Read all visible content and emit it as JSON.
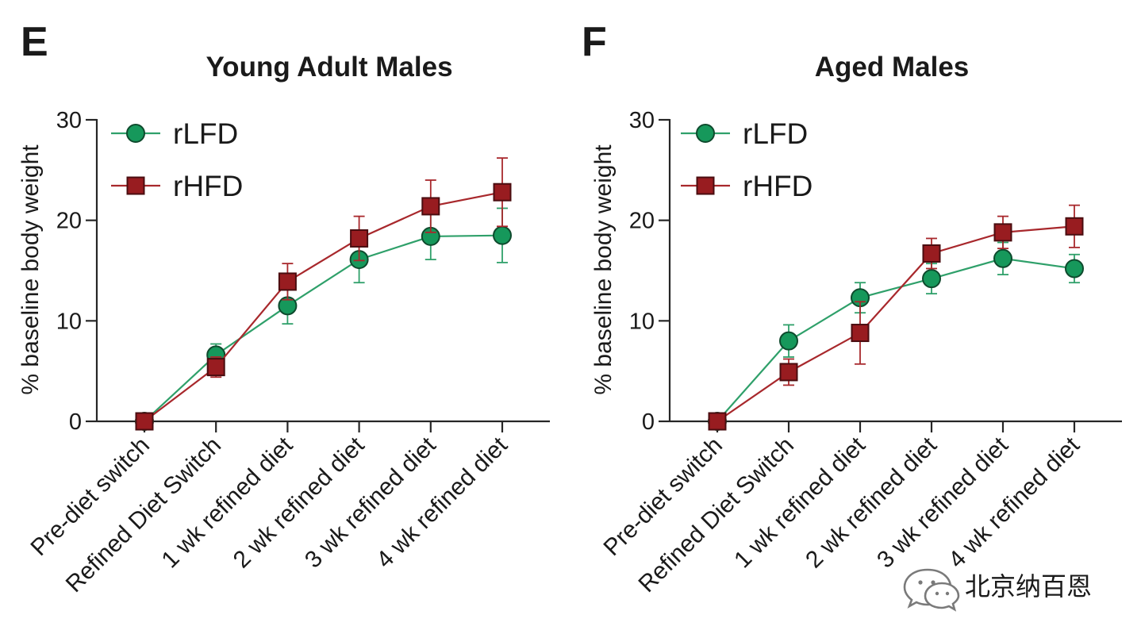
{
  "figure": {
    "background": "#ffffff",
    "axis_color": "#262626"
  },
  "chart_data": [
    {
      "panel_label": "E",
      "type": "line",
      "title": "Young Adult Males",
      "xlabel": "",
      "ylabel": "% baseline body weight",
      "ylim": [
        0,
        30
      ],
      "yticks": [
        0,
        10,
        20,
        30
      ],
      "grid": false,
      "legend": "top-left",
      "categories": [
        "Pre-diet switch",
        "Refined Diet Switch",
        "1 wk refined diet",
        "2 wk refined diet",
        "3 wk refined diet",
        "4 wk refined diet"
      ],
      "series": [
        {
          "name": "rLFD",
          "marker": "circle",
          "color": "#16985b",
          "edge_color": "#0e4a2d",
          "line_color": "#2fa06a",
          "values": [
            0,
            6.6,
            11.5,
            16.1,
            18.4,
            18.5
          ],
          "error": [
            0,
            1.1,
            1.8,
            2.3,
            2.3,
            2.7
          ]
        },
        {
          "name": "rHFD",
          "marker": "square",
          "color": "#981c20",
          "edge_color": "#4a0d10",
          "line_color": "#a8282c",
          "values": [
            0,
            5.4,
            13.9,
            18.2,
            21.4,
            22.8
          ],
          "error": [
            0,
            1.0,
            1.8,
            2.2,
            2.6,
            3.4
          ]
        }
      ]
    },
    {
      "panel_label": "F",
      "type": "line",
      "title": "Aged Males",
      "xlabel": "",
      "ylabel": "% baseline body weight",
      "ylim": [
        0,
        30
      ],
      "yticks": [
        0,
        10,
        20,
        30
      ],
      "grid": false,
      "legend": "top-left",
      "categories": [
        "Pre-diet switch",
        "Refined Diet Switch",
        "1 wk refined diet",
        "2 wk refined diet",
        "3 wk refined diet",
        "4 wk refined diet"
      ],
      "series": [
        {
          "name": "rLFD",
          "marker": "circle",
          "color": "#16985b",
          "edge_color": "#0e4a2d",
          "line_color": "#2fa06a",
          "values": [
            0,
            8.0,
            12.3,
            14.2,
            16.2,
            15.2
          ],
          "error": [
            0,
            1.6,
            1.5,
            1.5,
            1.6,
            1.4
          ]
        },
        {
          "name": "rHFD",
          "marker": "square",
          "color": "#981c20",
          "edge_color": "#4a0d10",
          "line_color": "#a8282c",
          "values": [
            0,
            4.9,
            8.8,
            16.7,
            18.8,
            19.4
          ],
          "error": [
            0,
            1.3,
            3.1,
            1.5,
            1.6,
            2.1
          ]
        }
      ]
    }
  ],
  "watermark": {
    "text": "北京纳百恩",
    "icon": "wechat-icon",
    "color": "#555555"
  }
}
